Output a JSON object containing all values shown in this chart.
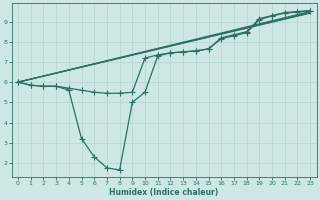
{
  "bg_color": "#cde8e4",
  "grid_color": "#b8d8d4",
  "line_color": "#2d6e65",
  "line_width": 0.9,
  "marker": "+",
  "marker_size": 4,
  "xlabel": "Humidex (Indice chaleur)",
  "xlim": [
    -0.5,
    23.5
  ],
  "ylim": [
    1.3,
    9.9
  ],
  "xticks": [
    0,
    1,
    2,
    3,
    4,
    5,
    6,
    7,
    8,
    9,
    10,
    11,
    12,
    13,
    14,
    15,
    16,
    17,
    18,
    19,
    20,
    21,
    22,
    23
  ],
  "yticks": [
    2,
    3,
    4,
    5,
    6,
    7,
    8,
    9
  ],
  "series": [
    {
      "x": [
        0,
        1,
        2,
        3,
        4,
        5,
        6,
        7,
        8,
        9,
        10,
        11,
        12,
        13,
        14,
        15,
        16,
        17,
        18,
        19,
        20,
        21,
        22,
        23
      ],
      "y": [
        6.0,
        5.85,
        5.8,
        5.8,
        5.6,
        3.2,
        2.3,
        1.75,
        1.65,
        5.0,
        5.5,
        7.3,
        7.45,
        7.5,
        7.55,
        7.65,
        8.2,
        8.35,
        8.5,
        9.15,
        9.3,
        9.45,
        9.5,
        9.55
      ],
      "has_markers": true
    },
    {
      "x": [
        0,
        23
      ],
      "y": [
        6.0,
        9.5
      ],
      "has_markers": false
    },
    {
      "x": [
        0,
        23
      ],
      "y": [
        6.0,
        9.45
      ],
      "has_markers": false
    },
    {
      "x": [
        0,
        23
      ],
      "y": [
        6.0,
        9.42
      ],
      "has_markers": false
    },
    {
      "x": [
        0,
        1,
        2,
        3,
        4,
        5,
        6,
        7,
        8,
        9,
        10,
        11,
        12,
        13,
        14,
        15,
        16,
        17,
        18,
        19,
        20,
        21,
        22,
        23
      ],
      "y": [
        6.0,
        5.85,
        5.8,
        5.8,
        5.7,
        5.6,
        5.5,
        5.45,
        5.45,
        5.5,
        7.2,
        7.35,
        7.45,
        7.5,
        7.55,
        7.65,
        8.15,
        8.3,
        8.45,
        9.1,
        9.28,
        9.42,
        9.48,
        9.52
      ],
      "has_markers": true
    }
  ]
}
